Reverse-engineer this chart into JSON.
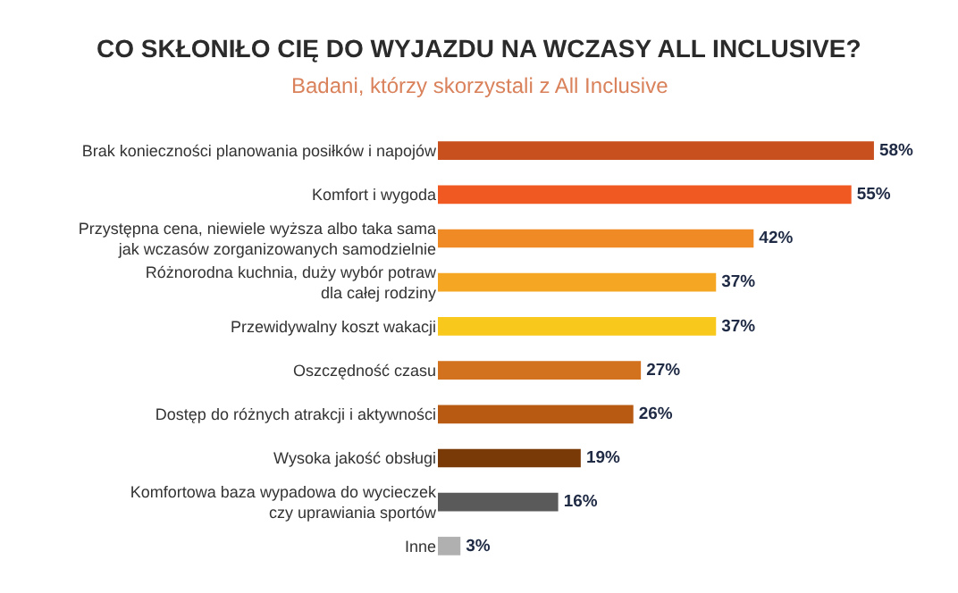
{
  "chart_data": {
    "type": "bar",
    "orientation": "horizontal",
    "title": "CO SKŁONIŁO CIĘ DO WYJAZDU NA WCZASY ALL INCLUSIVE?",
    "subtitle": "Badani, którzy skorzystali z All Inclusive",
    "categories": [
      "Brak konieczności planowania posiłków i napojów",
      "Komfort i wygoda",
      "Przystępna cena, niewiele wyższa albo taka sama\njak wczasów zorganizowanych samodzielnie",
      "Różnorodna kuchnia, duży wybór potraw\ndla całej rodziny",
      "Przewidywalny koszt wakacji",
      "Oszczędność czasu",
      "Dostęp do różnych atrakcji i aktywności",
      "Wysoka jakość obsługi",
      "Komfortowa baza wypadowa do wycieczek\nczy uprawiania sportów",
      "Inne"
    ],
    "values": [
      58,
      55,
      42,
      37,
      37,
      27,
      26,
      19,
      16,
      3
    ],
    "value_labels": [
      "58%",
      "55%",
      "42%",
      "37%",
      "37%",
      "27%",
      "26%",
      "19%",
      "16%",
      "3%"
    ],
    "colors": [
      "#c8501e",
      "#f05a22",
      "#f08a24",
      "#f5a623",
      "#f8c81c",
      "#d2711e",
      "#b85a12",
      "#7a3a08",
      "#5a5a5a",
      "#b0b0b0"
    ]
  }
}
